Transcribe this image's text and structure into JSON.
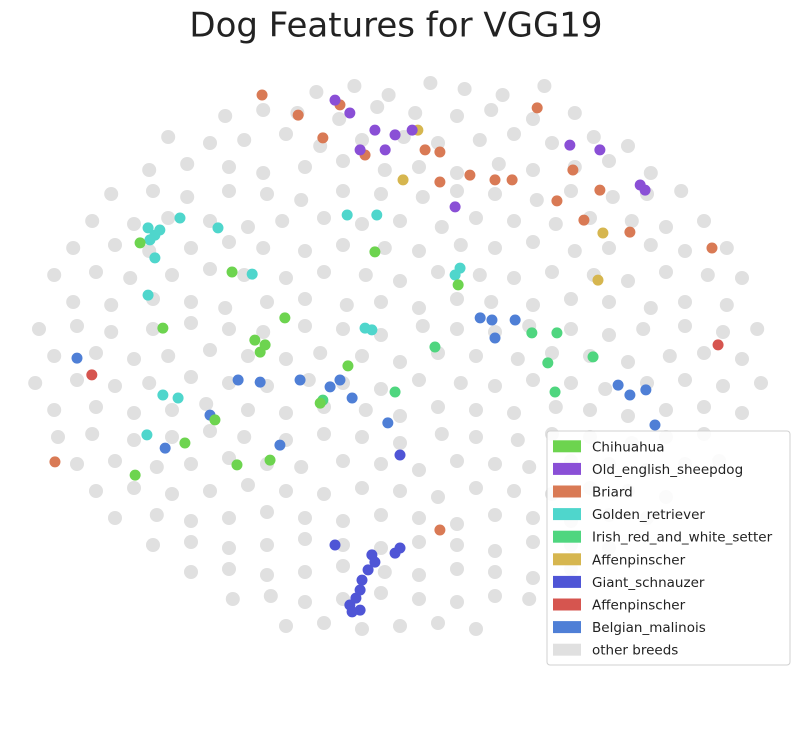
{
  "chart_data": {
    "type": "scatter",
    "title": "Dog Features for VGG19",
    "xlim": [
      -100,
      100
    ],
    "ylim": [
      -100,
      100
    ],
    "grid": false,
    "legend": "lower right",
    "series": [
      {
        "name": "Chihuahua",
        "color": "#6dd44f",
        "x": [
          -38.2,
          -36.8,
          -35.5,
          -30.3,
          -62.4,
          -44.2,
          15.3,
          -6.6,
          -42.9,
          -56.6,
          -69.7,
          -48.7,
          -34.2,
          -21,
          -13.7,
          -68.4
        ],
        "values": [
          8.3,
          4.3,
          6.7,
          15.7,
          12.3,
          31,
          26.7,
          37.7,
          -33.3,
          -26,
          -36.7,
          -18.3,
          -31.7,
          -12.7,
          -0.3,
          40.7
        ]
      },
      {
        "name": "Old_english_sheepdog",
        "color": "#8a4fd6",
        "x": [
          -17.1,
          -13.2,
          -6.6,
          -1.3,
          3.2,
          -10.5,
          14.5,
          63.2,
          64.5,
          52.6,
          44.7,
          -3.9
        ],
        "values": [
          88.3,
          84,
          78.3,
          76.7,
          78.3,
          71.7,
          52.7,
          60,
          58.3,
          71.7,
          73.3,
          71.7
        ]
      },
      {
        "name": "Briard",
        "color": "#d97a55",
        "x": [
          -36.3,
          -26.8,
          -20.3,
          -15.8,
          6.6,
          10.5,
          10.5,
          18.4,
          25,
          29.5,
          36.1,
          45.5,
          52.6,
          41.3,
          48.4,
          60.5,
          82.1,
          -90.8,
          10.5,
          -9.2
        ],
        "values": [
          90,
          83.3,
          75.7,
          86.7,
          71.7,
          71,
          61,
          63.3,
          61.7,
          61.7,
          85.7,
          65,
          58.3,
          54.7,
          48.3,
          44.3,
          39,
          -32.3,
          -55,
          70
        ]
      },
      {
        "name": "Golden_retriever",
        "color": "#4fd6cc",
        "x": [
          -66.3,
          -64.5,
          -63.2,
          -65.8,
          -64.5,
          -57.9,
          -47.9,
          -38.9,
          -66.3,
          -13.9,
          -6.1,
          15.8,
          14.5,
          -9.2,
          -7.4,
          -66.6,
          -58.4,
          -62.4
        ],
        "values": [
          45.7,
          43.3,
          45,
          41.7,
          35.7,
          49,
          45.7,
          30.3,
          23.3,
          50,
          50,
          32.3,
          30,
          12.3,
          11.7,
          -23.3,
          -11,
          -10
        ]
      },
      {
        "name": "Irish_red_and_white_setter",
        "color": "#4fd67f",
        "x": [
          41.3,
          34.7,
          38.9,
          50.8,
          40.8,
          9.2,
          -20.3,
          -1.3
        ],
        "values": [
          10.7,
          10.7,
          0.7,
          2.7,
          -9,
          6,
          -11.7,
          -9
        ]
      },
      {
        "name": "Affenpinscher",
        "color": "#d6b64f",
        "x": [
          4.7,
          53.4,
          52.1,
          0.8
        ],
        "values": [
          78.3,
          44,
          28.3,
          61.7
        ]
      },
      {
        "name": "Giant_schnauzer",
        "color": "#4f55d6",
        "x": [
          -13.2,
          -11.6,
          -10.5,
          -10,
          -8.4,
          -7.4,
          -6.6,
          -1.3,
          0,
          0,
          -17.1,
          -10.5,
          -12.6
        ],
        "values": [
          -80,
          -77.7,
          -75,
          -71.7,
          -68.3,
          -63.3,
          -65.7,
          -62.7,
          -61,
          -30,
          -60,
          -81.7,
          -82.3
        ]
      },
      {
        "name": "Affenpinscher",
        "color": "#d6554f",
        "x": [
          -81.1,
          83.7
        ],
        "values": [
          -3.3,
          6.7
        ]
      },
      {
        "name": "Belgian_malinois",
        "color": "#4f7fd6",
        "x": [
          -85,
          21.1,
          24.2,
          30.3,
          25,
          -18.4,
          -15.8,
          -26.3,
          -36.8,
          -42.6,
          -50,
          -12.6,
          -3.2,
          57.4,
          60.5,
          64.7,
          67.1,
          -61.8,
          -31.6
        ],
        "values": [
          2.3,
          15.7,
          15,
          15,
          9,
          -7.3,
          -5,
          -5,
          -5.7,
          -5,
          -16.7,
          -11,
          -19.3,
          -6.7,
          -10,
          -8.3,
          -20,
          -27.7,
          -26.7
        ]
      },
      {
        "name": "other breeds",
        "color": "#e0e0e0",
        "x": [
          -22,
          -12,
          -3,
          8,
          17,
          27,
          38,
          -46,
          -36,
          -27,
          -16,
          -6,
          4,
          15,
          24,
          35,
          46,
          -61,
          -50,
          -41,
          -30,
          -21,
          -10,
          1,
          10,
          21,
          30,
          40,
          51,
          60,
          -66,
          -56,
          -45,
          -36,
          -25,
          -15,
          -4,
          5,
          15,
          26,
          35,
          46,
          55,
          66,
          -76,
          -65,
          -56,
          -45,
          -35,
          -26,
          -15,
          -5,
          6,
          15,
          25,
          36,
          45,
          56,
          65,
          74,
          -81,
          -70,
          -61,
          -50,
          -40,
          -31,
          -20,
          -10,
          0,
          11,
          20,
          30,
          41,
          50,
          61,
          70,
          80,
          -86,
          -75,
          -66,
          -55,
          -45,
          -36,
          -25,
          -15,
          -4,
          5,
          16,
          25,
          35,
          46,
          55,
          66,
          75,
          86,
          -91,
          -80,
          -71,
          -60,
          -50,
          -41,
          -30,
          -20,
          -9,
          0,
          10,
          21,
          30,
          40,
          51,
          60,
          70,
          81,
          90,
          -86,
          -76,
          -65,
          -55,
          -46,
          -35,
          -25,
          -14,
          -5,
          5,
          15,
          24,
          35,
          45,
          55,
          66,
          75,
          86,
          -95,
          -85,
          -76,
          -65,
          -55,
          -45,
          -36,
          -25,
          -15,
          -5,
          6,
          15,
          25,
          34,
          45,
          55,
          64,
          75,
          85,
          94,
          -91,
          -80,
          -70,
          -61,
          -50,
          -40,
          -30,
          -21,
          -10,
          0,
          10,
          20,
          31,
          40,
          50,
          60,
          71,
          80,
          90,
          -96,
          -85,
          -75,
          -66,
          -55,
          -45,
          -35,
          -24,
          -15,
          -5,
          5,
          16,
          25,
          35,
          45,
          54,
          65,
          75,
          85,
          95,
          -91,
          -80,
          -70,
          -60,
          -51,
          -40,
          -30,
          -20,
          -9,
          0,
          10,
          20,
          30,
          41,
          50,
          60,
          70,
          80,
          90,
          -90,
          -81,
          -70,
          -60,
          -50,
          -41,
          -30,
          -20,
          -10,
          0,
          11,
          20,
          31,
          40,
          50,
          61,
          70,
          80,
          -85,
          -75,
          -64,
          -55,
          -45,
          -35,
          -26,
          -15,
          -5,
          5,
          15,
          25,
          34,
          45,
          55,
          65,
          75,
          84,
          -80,
          -70,
          -60,
          -50,
          -40,
          -30,
          -20,
          -10,
          0,
          10,
          20,
          30,
          40,
          50,
          60,
          70,
          -75,
          -64,
          -55,
          -45,
          -35,
          -25,
          -15,
          -5,
          5,
          15,
          25,
          35,
          45,
          55,
          65,
          -65,
          -55,
          -45,
          -35,
          -25,
          -15,
          -5,
          5,
          15,
          25,
          35,
          45,
          55,
          -55,
          -45,
          -35,
          -25,
          -15,
          -4,
          5,
          15,
          25,
          35,
          45,
          -44,
          -34,
          -25,
          -15,
          -5,
          5,
          15,
          25,
          34,
          -30,
          -20,
          -10,
          0,
          10,
          20
        ],
        "values": [
          91,
          93,
          90,
          94,
          92,
          90,
          93,
          83,
          85,
          84,
          82,
          86,
          84,
          83,
          85,
          82,
          84,
          76,
          74,
          75,
          77,
          73,
          75,
          76,
          74,
          75,
          77,
          74,
          76,
          73,
          65,
          67,
          66,
          64,
          66,
          68,
          65,
          66,
          64,
          67,
          65,
          66,
          68,
          64,
          57,
          58,
          56,
          58,
          57,
          55,
          58,
          57,
          56,
          58,
          57,
          55,
          58,
          56,
          57,
          58,
          48,
          47,
          49,
          48,
          46,
          48,
          49,
          47,
          48,
          46,
          49,
          48,
          47,
          49,
          48,
          46,
          48,
          39,
          40,
          38,
          39,
          41,
          39,
          38,
          40,
          39,
          38,
          40,
          39,
          41,
          38,
          39,
          40,
          38,
          39,
          30,
          31,
          29,
          30,
          32,
          30,
          29,
          31,
          30,
          28,
          31,
          30,
          29,
          31,
          30,
          28,
          31,
          30,
          29,
          21,
          20,
          22,
          21,
          19,
          21,
          22,
          20,
          21,
          19,
          22,
          21,
          20,
          22,
          21,
          19,
          21,
          20,
          12,
          13,
          11,
          12,
          14,
          12,
          11,
          13,
          12,
          10,
          13,
          12,
          11,
          13,
          12,
          10,
          12,
          13,
          11,
          12,
          3,
          4,
          2,
          3,
          5,
          3,
          2,
          4,
          3,
          1,
          4,
          3,
          2,
          4,
          3,
          1,
          3,
          4,
          2,
          -6,
          -5,
          -7,
          -6,
          -4,
          -6,
          -7,
          -5,
          -6,
          -8,
          -5,
          -6,
          -7,
          -5,
          -6,
          -8,
          -6,
          -5,
          -7,
          -6,
          -15,
          -14,
          -16,
          -15,
          -13,
          -15,
          -16,
          -14,
          -15,
          -17,
          -14,
          -15,
          -16,
          -14,
          -15,
          -17,
          -15,
          -14,
          -16,
          -24,
          -23,
          -25,
          -24,
          -22,
          -24,
          -25,
          -23,
          -24,
          -26,
          -23,
          -24,
          -25,
          -23,
          -24,
          -26,
          -24,
          -23,
          -33,
          -32,
          -34,
          -33,
          -31,
          -33,
          -34,
          -32,
          -33,
          -35,
          -32,
          -33,
          -34,
          -32,
          -33,
          -35,
          -33,
          -32,
          -42,
          -41,
          -43,
          -42,
          -40,
          -42,
          -43,
          -41,
          -42,
          -44,
          -41,
          -42,
          -43,
          -41,
          -42,
          -44,
          -51,
          -50,
          -52,
          -51,
          -49,
          -51,
          -52,
          -50,
          -51,
          -53,
          -50,
          -51,
          -52,
          -50,
          -51,
          -60,
          -59,
          -61,
          -60,
          -58,
          -60,
          -61,
          -59,
          -60,
          -62,
          -59,
          -60,
          -61,
          -69,
          -68,
          -70,
          -69,
          -67,
          -69,
          -70,
          -68,
          -69,
          -71,
          -68,
          -78,
          -77,
          -79,
          -78,
          -76,
          -78,
          -79,
          -77,
          -78,
          -87,
          -86,
          -88,
          -87,
          -86,
          -88
        ]
      }
    ]
  }
}
